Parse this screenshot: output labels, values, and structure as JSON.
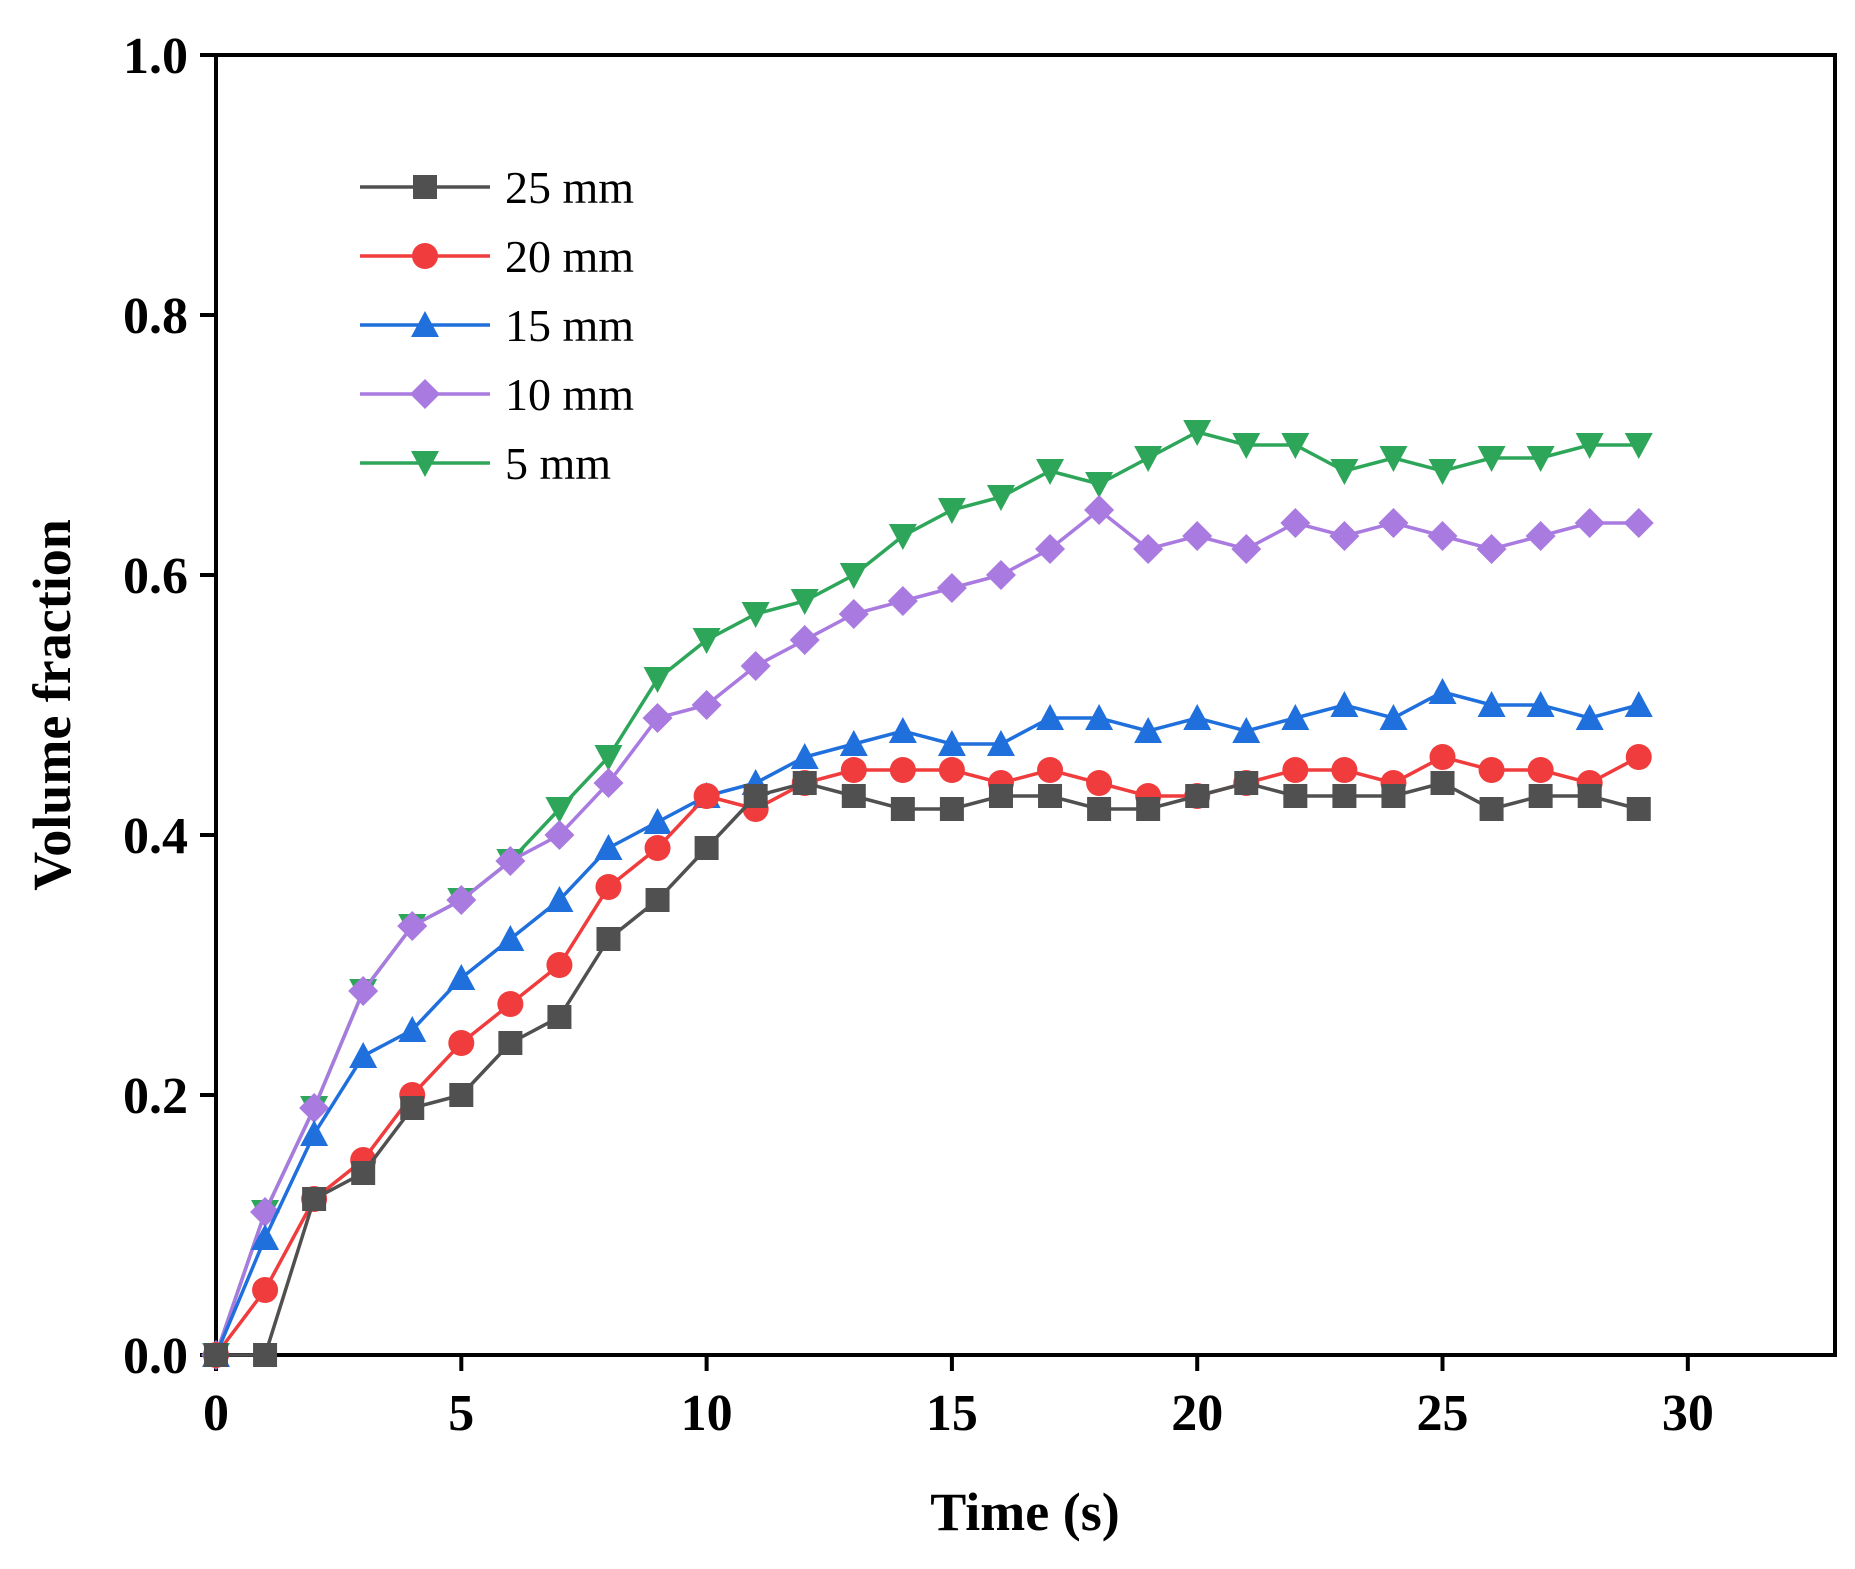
{
  "chart_data": {
    "type": "line",
    "title": "",
    "xlabel": "Time (s)",
    "ylabel": "Volume fraction",
    "xlim": [
      0,
      33
    ],
    "ylim": [
      0,
      1.0
    ],
    "xticks": [
      0,
      5,
      10,
      15,
      20,
      25,
      30
    ],
    "xtick_labels": [
      "0",
      "5",
      "10",
      "15",
      "20",
      "25",
      "30"
    ],
    "yticks": [
      0,
      0.2,
      0.4,
      0.6,
      0.8,
      1.0
    ],
    "ytick_labels": [
      "0.0",
      "0.2",
      "0.4",
      "0.6",
      "0.8",
      "1.0"
    ],
    "grid": false,
    "legend_position": "top-left",
    "x": [
      0,
      1,
      2,
      3,
      4,
      5,
      6,
      7,
      8,
      9,
      10,
      11,
      12,
      13,
      14,
      15,
      16,
      17,
      18,
      19,
      20,
      21,
      22,
      23,
      24,
      25,
      26,
      27,
      28,
      29
    ],
    "series": [
      {
        "name": "25 mm",
        "color": "#505050",
        "marker": "square",
        "values": [
          0,
          0,
          0.12,
          0.14,
          0.19,
          0.2,
          0.24,
          0.26,
          0.32,
          0.35,
          0.39,
          0.43,
          0.44,
          0.43,
          0.42,
          0.42,
          0.43,
          0.43,
          0.42,
          0.42,
          0.43,
          0.44,
          0.43,
          0.43,
          0.43,
          0.44,
          0.42,
          0.43,
          0.43,
          0.42
        ]
      },
      {
        "name": "20 mm",
        "color": "#f03c3c",
        "marker": "circle",
        "values": [
          0,
          0.05,
          0.12,
          0.15,
          0.2,
          0.24,
          0.27,
          0.3,
          0.36,
          0.39,
          0.43,
          0.42,
          0.44,
          0.45,
          0.45,
          0.45,
          0.44,
          0.45,
          0.44,
          0.43,
          0.43,
          0.44,
          0.45,
          0.45,
          0.44,
          0.46,
          0.45,
          0.45,
          0.44,
          0.46
        ]
      },
      {
        "name": "15 mm",
        "color": "#1f6fdc",
        "marker": "triangle-up",
        "values": [
          0,
          0.09,
          0.17,
          0.23,
          0.25,
          0.29,
          0.32,
          0.35,
          0.39,
          0.41,
          0.43,
          0.44,
          0.46,
          0.47,
          0.48,
          0.47,
          0.47,
          0.49,
          0.49,
          0.48,
          0.49,
          0.48,
          0.49,
          0.5,
          0.49,
          0.51,
          0.5,
          0.5,
          0.49,
          0.5
        ]
      },
      {
        "name": "10 mm",
        "color": "#a97ae0",
        "marker": "diamond",
        "values": [
          0,
          0.11,
          0.19,
          0.28,
          0.33,
          0.35,
          0.38,
          0.4,
          0.44,
          0.49,
          0.5,
          0.53,
          0.55,
          0.57,
          0.58,
          0.59,
          0.6,
          0.62,
          0.65,
          0.62,
          0.63,
          0.62,
          0.64,
          0.63,
          0.64,
          0.63,
          0.62,
          0.63,
          0.64,
          0.64
        ]
      },
      {
        "name": "5 mm",
        "color": "#2ea65a",
        "marker": "triangle-down",
        "values": [
          0,
          0.11,
          0.19,
          0.28,
          0.33,
          0.35,
          0.38,
          0.42,
          0.46,
          0.52,
          0.55,
          0.57,
          0.58,
          0.6,
          0.63,
          0.65,
          0.66,
          0.68,
          0.67,
          0.69,
          0.71,
          0.7,
          0.7,
          0.68,
          0.69,
          0.68,
          0.69,
          0.69,
          0.7,
          0.7
        ]
      }
    ]
  }
}
